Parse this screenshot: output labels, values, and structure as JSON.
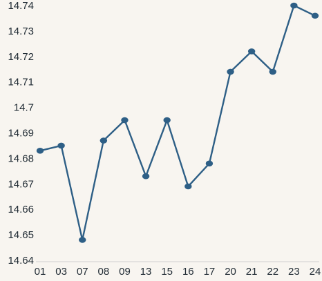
{
  "chart_data": {
    "type": "line",
    "title": "",
    "xlabel": "",
    "ylabel": "",
    "categories": [
      "01",
      "03",
      "07",
      "08",
      "09",
      "13",
      "15",
      "16",
      "17",
      "20",
      "21",
      "22",
      "23",
      "24"
    ],
    "series": [
      {
        "values": [
          14.683,
          14.685,
          14.648,
          14.687,
          14.695,
          14.673,
          14.695,
          14.669,
          14.678,
          14.714,
          14.722,
          14.714,
          14.74,
          14.736
        ]
      }
    ],
    "ylim": [
      14.64,
      14.74
    ],
    "yticks": [
      "14.64",
      "14.65",
      "14.66",
      "14.67",
      "14.68",
      "14.69",
      "14.7",
      "14.71",
      "14.72",
      "14.73",
      "14.74"
    ],
    "grid": false,
    "legend": "none",
    "colors": {
      "line": "#2e5f86",
      "marker": "#2e5f86",
      "axis": "#cfcfcf",
      "text": "#1f2a33",
      "background": "#f8f5f0"
    }
  }
}
